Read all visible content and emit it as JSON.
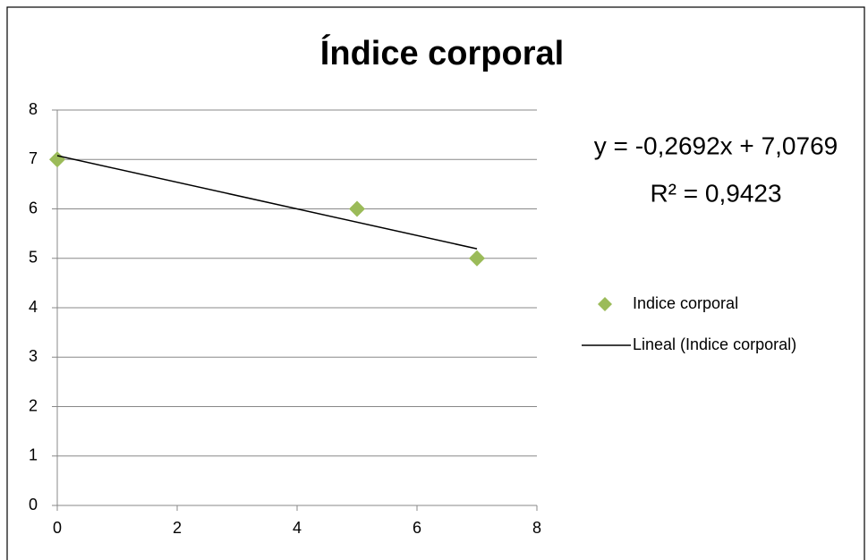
{
  "chart_data": {
    "type": "scatter",
    "title": "Índice corporal",
    "series": [
      {
        "name": "Indice corporal",
        "color": "#9bbb59",
        "type": "scatter",
        "x": [
          0,
          5,
          7
        ],
        "values": [
          7,
          6,
          5
        ]
      },
      {
        "name": "Lineal (Indice corporal)",
        "color": "#000000",
        "type": "line",
        "x": [
          0,
          7
        ],
        "values": [
          7.0769,
          5.1925
        ]
      }
    ],
    "annotations": [
      "y = -0,2692x + 7,0769",
      "R² = 0,9423"
    ],
    "xlim": [
      0,
      8
    ],
    "xticks": [
      0,
      2,
      4,
      6,
      8
    ],
    "ylim": [
      0,
      8
    ],
    "yticks": [
      0,
      1,
      2,
      3,
      4,
      5,
      6,
      7,
      8
    ],
    "grid": true,
    "legend": "right"
  }
}
